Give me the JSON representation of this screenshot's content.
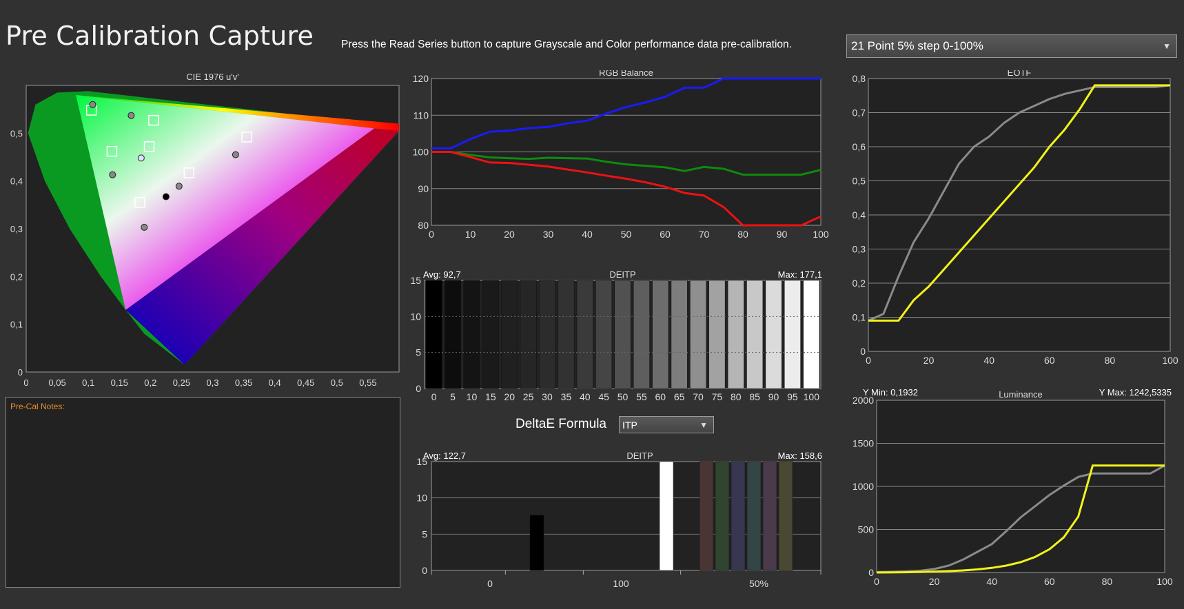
{
  "page": {
    "title": "Pre Calibration Capture",
    "instruction": "Press the Read Series button to capture Grayscale and Color performance data pre-calibration.",
    "series_select": "21 Point 5% step 0-100%",
    "notes_label": "Pre-Cal Notes:",
    "deltae_formula_label": "DeltaE Formula",
    "deltae_formula_value": "ITP",
    "caret": "▼"
  },
  "chart_data": [
    {
      "id": "cie",
      "type": "scatter",
      "title": "CIE 1976 u'v'",
      "xlim": [
        0,
        0.6
      ],
      "ylim": [
        0,
        0.6
      ],
      "x_ticks": [
        "0",
        "0,05",
        "0,1",
        "0,15",
        "0,2",
        "0,25",
        "0,3",
        "0,35",
        "0,4",
        "0,45",
        "0,5",
        "0,55"
      ],
      "x_tick_values": [
        0,
        0.05,
        0.1,
        0.15,
        0.2,
        0.25,
        0.3,
        0.35,
        0.4,
        0.45,
        0.5,
        0.55
      ],
      "y_ticks": [
        "0",
        "0,1",
        "0,2",
        "0,3",
        "0,4",
        "0,5"
      ],
      "y_tick_values": [
        0,
        0.1,
        0.2,
        0.3,
        0.4,
        0.5
      ],
      "gamut_triangle": [
        [
          0.56,
          0.51
        ],
        [
          0.08,
          0.58
        ],
        [
          0.16,
          0.13
        ]
      ],
      "targets": [
        {
          "u": 0.105,
          "v": 0.548
        },
        {
          "u": 0.205,
          "v": 0.527
        },
        {
          "u": 0.138,
          "v": 0.462
        },
        {
          "u": 0.198,
          "v": 0.472
        },
        {
          "u": 0.355,
          "v": 0.492
        },
        {
          "u": 0.262,
          "v": 0.417
        },
        {
          "u": 0.183,
          "v": 0.355
        }
      ],
      "measurements": [
        {
          "u": 0.107,
          "v": 0.56,
          "c": "#888"
        },
        {
          "u": 0.169,
          "v": 0.537,
          "c": "#888"
        },
        {
          "u": 0.139,
          "v": 0.413,
          "c": "#888"
        },
        {
          "u": 0.185,
          "v": 0.448,
          "c": "#dde0ff"
        },
        {
          "u": 0.337,
          "v": 0.455,
          "c": "#888"
        },
        {
          "u": 0.246,
          "v": 0.389,
          "c": "#888"
        },
        {
          "u": 0.225,
          "v": 0.367,
          "c": "#000"
        },
        {
          "u": 0.19,
          "v": 0.303,
          "c": "#888"
        }
      ]
    },
    {
      "id": "rgb",
      "type": "line",
      "title": "RGB Balance",
      "xlim": [
        0,
        100
      ],
      "ylim": [
        80,
        120
      ],
      "x_ticks": [
        "0",
        "10",
        "20",
        "30",
        "40",
        "50",
        "60",
        "70",
        "80",
        "90",
        "100"
      ],
      "y_ticks": [
        "80",
        "90",
        "100",
        "110",
        "120"
      ],
      "x": [
        0,
        5,
        10,
        15,
        20,
        25,
        30,
        35,
        40,
        45,
        50,
        55,
        60,
        65,
        70,
        75,
        80,
        85,
        90,
        95,
        100
      ],
      "series": [
        {
          "name": "",
          "color": "#1a1aff",
          "values": [
            101,
            101,
            103.5,
            105.5,
            105.8,
            106.5,
            106.8,
            107.8,
            108.5,
            110.5,
            112.2,
            113.5,
            115,
            117.5,
            117.5,
            120,
            120,
            120,
            120,
            120,
            120
          ]
        },
        {
          "name": "",
          "color": "#0e8a0e",
          "values": [
            100,
            100,
            99.2,
            98.5,
            98.3,
            98.1,
            98.4,
            98.3,
            98.2,
            97.3,
            96.6,
            96.2,
            95.8,
            94.8,
            95.9,
            95.4,
            93.8,
            93.8,
            93.8,
            93.8,
            95.1
          ]
        },
        {
          "name": "",
          "color": "#ee1111",
          "values": [
            100,
            100,
            98.6,
            97.1,
            97,
            96.5,
            96,
            95.2,
            94.4,
            93.5,
            92.7,
            91.7,
            90.5,
            88.8,
            88.1,
            85,
            80,
            79,
            79,
            79,
            82.4
          ]
        }
      ]
    },
    {
      "id": "deitp-gray",
      "type": "bar",
      "title": "DEITP",
      "avg_label": "Avg: 92,7",
      "max_label": "Max: 177,1",
      "ylim": [
        0,
        15
      ],
      "y_ticks": [
        "15",
        "10",
        "5",
        "0"
      ],
      "categories": [
        "0",
        "5",
        "10",
        "15",
        "20",
        "25",
        "30",
        "35",
        "40",
        "45",
        "50",
        "55",
        "60",
        "65",
        "70",
        "75",
        "80",
        "85",
        "90",
        "95",
        "100"
      ],
      "values": [
        15,
        15,
        15,
        15,
        15,
        15,
        15,
        15,
        15,
        15,
        15,
        15,
        15,
        15,
        15,
        15,
        15,
        15,
        15,
        15,
        15
      ],
      "colors": [
        "#000000",
        "#0d0d0d",
        "#141414",
        "#1a1a1a",
        "#202020",
        "#262626",
        "#2c2c2c",
        "#323232",
        "#3a3a3a",
        "#454545",
        "#515151",
        "#5e5e5e",
        "#6d6d6d",
        "#7d7d7d",
        "#8f8f8f",
        "#a2a2a2",
        "#b5b5b5",
        "#c8c8c8",
        "#dbdbdb",
        "#ececec",
        "#ffffff"
      ]
    },
    {
      "id": "deitp-color",
      "type": "bar",
      "title": "DEITP",
      "avg_label": "Avg: 122,7",
      "max_label": "Max: 158,6",
      "ylim": [
        0,
        15
      ],
      "y_ticks": [
        "15",
        "10",
        "5",
        "0"
      ],
      "x_labels": [
        "0",
        "100",
        "50%"
      ],
      "bars": [
        {
          "value": 7.6,
          "color": "#000000"
        },
        {
          "value": 15,
          "color": "#ffffff"
        },
        {
          "value": 15,
          "color": "#4b3434"
        },
        {
          "value": 15,
          "color": "#30442f"
        },
        {
          "value": 15,
          "color": "#37374f"
        },
        {
          "value": 15,
          "color": "#344545"
        },
        {
          "value": 15,
          "color": "#4a3a4a"
        },
        {
          "value": 15,
          "color": "#494933"
        }
      ]
    },
    {
      "id": "eotf",
      "type": "line",
      "title": "EOTF",
      "xlim": [
        0,
        100
      ],
      "ylim": [
        0,
        0.8
      ],
      "x_ticks": [
        "0",
        "20",
        "40",
        "60",
        "80",
        "100"
      ],
      "y_ticks": [
        "0",
        "0,1",
        "0,2",
        "0,3",
        "0,4",
        "0,5",
        "0,6",
        "0,7",
        "0,8"
      ],
      "x": [
        0,
        5,
        10,
        15,
        20,
        25,
        30,
        35,
        40,
        45,
        50,
        55,
        60,
        65,
        70,
        75,
        80,
        85,
        90,
        95,
        100
      ],
      "series": [
        {
          "name": "",
          "color": "#8a8a8a",
          "values": [
            0.09,
            0.11,
            0.22,
            0.32,
            0.39,
            0.47,
            0.55,
            0.6,
            0.63,
            0.67,
            0.7,
            0.72,
            0.74,
            0.755,
            0.765,
            0.775,
            0.775,
            0.775,
            0.775,
            0.775,
            0.78
          ]
        },
        {
          "name": "",
          "color": "#f2f218",
          "values": [
            0.09,
            0.09,
            0.09,
            0.15,
            0.19,
            0.24,
            0.29,
            0.34,
            0.39,
            0.44,
            0.49,
            0.54,
            0.6,
            0.65,
            0.71,
            0.78,
            0.78,
            0.78,
            0.78,
            0.78,
            0.78
          ]
        }
      ]
    },
    {
      "id": "luminance",
      "type": "line",
      "title": "Luminance",
      "y_min_label": "Y Min: 0,1932",
      "y_max_label": "Y Max: 1242,5335",
      "xlim": [
        0,
        100
      ],
      "ylim": [
        0,
        2000
      ],
      "x_ticks": [
        "0",
        "20",
        "40",
        "60",
        "80",
        "100"
      ],
      "y_ticks": [
        "0",
        "500",
        "1000",
        "1500",
        "2000"
      ],
      "x": [
        0,
        5,
        10,
        15,
        20,
        25,
        30,
        35,
        40,
        45,
        50,
        55,
        60,
        65,
        70,
        75,
        80,
        85,
        90,
        95,
        100
      ],
      "series": [
        {
          "name": "",
          "color": "#8a8a8a",
          "values": [
            5,
            8,
            12,
            20,
            40,
            80,
            150,
            240,
            330,
            480,
            640,
            770,
            900,
            1010,
            1110,
            1150,
            1150,
            1150,
            1150,
            1150,
            1242
          ]
        },
        {
          "name": "",
          "color": "#f2f218",
          "values": [
            0.2,
            1,
            3,
            6,
            10,
            16,
            24,
            36,
            54,
            80,
            120,
            180,
            270,
            410,
            650,
            1242,
            1242,
            1242,
            1242,
            1242,
            1242
          ]
        }
      ]
    }
  ]
}
